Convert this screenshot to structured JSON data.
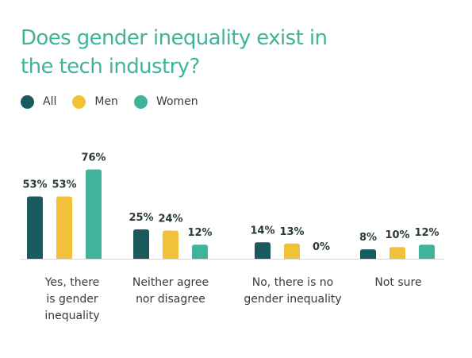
{
  "title": "Does gender inequality exist in the tech industry?",
  "colors": {
    "title": "#3fb49b",
    "axis": "#d9d9d9",
    "value_label": "#2a3a3a"
  },
  "chart_data": {
    "type": "bar",
    "title": "Does gender inequality exist in the tech industry?",
    "categories": [
      "Yes, there is gender inequality",
      "Neither agree nor disagree",
      "No, there is no gender inequality",
      "Not sure"
    ],
    "category_display": [
      "Yes, there\nis gender\ninequality",
      "Neither agree\nnor disagree",
      "No, there is no\ngender inequality",
      "Not sure"
    ],
    "series": [
      {
        "name": "All",
        "color": "#1b5a5c",
        "values": [
          53,
          25,
          14,
          8
        ],
        "labels": [
          "53%",
          "25%",
          "14%",
          "8%"
        ]
      },
      {
        "name": "Men",
        "color": "#f2c13a",
        "values": [
          53,
          24,
          13,
          10
        ],
        "labels": [
          "53%",
          "24%",
          "13%",
          "10%"
        ]
      },
      {
        "name": "Women",
        "color": "#3fb49b",
        "values": [
          76,
          12,
          0,
          12
        ],
        "labels": [
          "76%",
          "12%",
          "0%",
          "12%"
        ]
      }
    ],
    "unit": "%",
    "ylim": [
      0,
      80
    ],
    "grid": false,
    "legend_position": "top-left",
    "xlabel": "",
    "ylabel": ""
  }
}
